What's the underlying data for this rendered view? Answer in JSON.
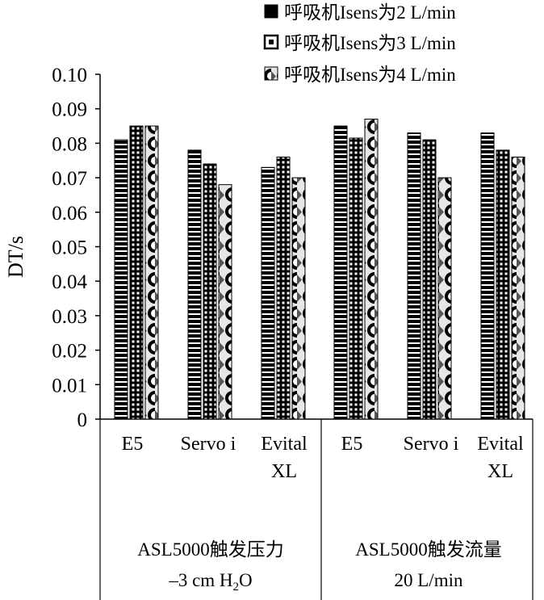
{
  "chart_data": {
    "type": "bar",
    "title": "",
    "xlabel": "",
    "ylabel": "DT/s",
    "ylim": [
      0,
      0.1
    ],
    "yticks": [
      "0",
      "0.01",
      "0.02",
      "0.03",
      "0.04",
      "0.05",
      "0.06",
      "0.07",
      "0.08",
      "0.09",
      "0.10"
    ],
    "grid": false,
    "legend_position": "top-right",
    "categories": [
      {
        "line1": "E5",
        "line2": ""
      },
      {
        "line1": "Servo i",
        "line2": ""
      },
      {
        "line1": "Evital",
        "line2": "XL"
      },
      {
        "line1": "E5",
        "line2": ""
      },
      {
        "line1": "Servo i",
        "line2": ""
      },
      {
        "line1": "Evital",
        "line2": "XL"
      }
    ],
    "groups": [
      {
        "line1": "ASL5000触发压力",
        "line2_pre": "–3 cm H",
        "line2_sub": "2",
        "line2_post": "O"
      },
      {
        "line1": "ASL5000触发流量",
        "line2_pre": "20 L/min",
        "line2_sub": "",
        "line2_post": ""
      }
    ],
    "series": [
      {
        "name": "呼吸机Isens为2 L/min",
        "pattern": "horizontal-stripes",
        "values": [
          0.081,
          0.078,
          0.073,
          0.085,
          0.083,
          0.083
        ]
      },
      {
        "name": "呼吸机Isens为3 L/min",
        "pattern": "dotted-squares",
        "values": [
          0.085,
          0.074,
          0.076,
          0.0815,
          0.081,
          0.078
        ]
      },
      {
        "name": "呼吸机Isens为4 L/min",
        "pattern": "shaded-scales",
        "values": [
          0.085,
          0.068,
          0.07,
          0.087,
          0.07,
          0.076
        ]
      }
    ]
  }
}
